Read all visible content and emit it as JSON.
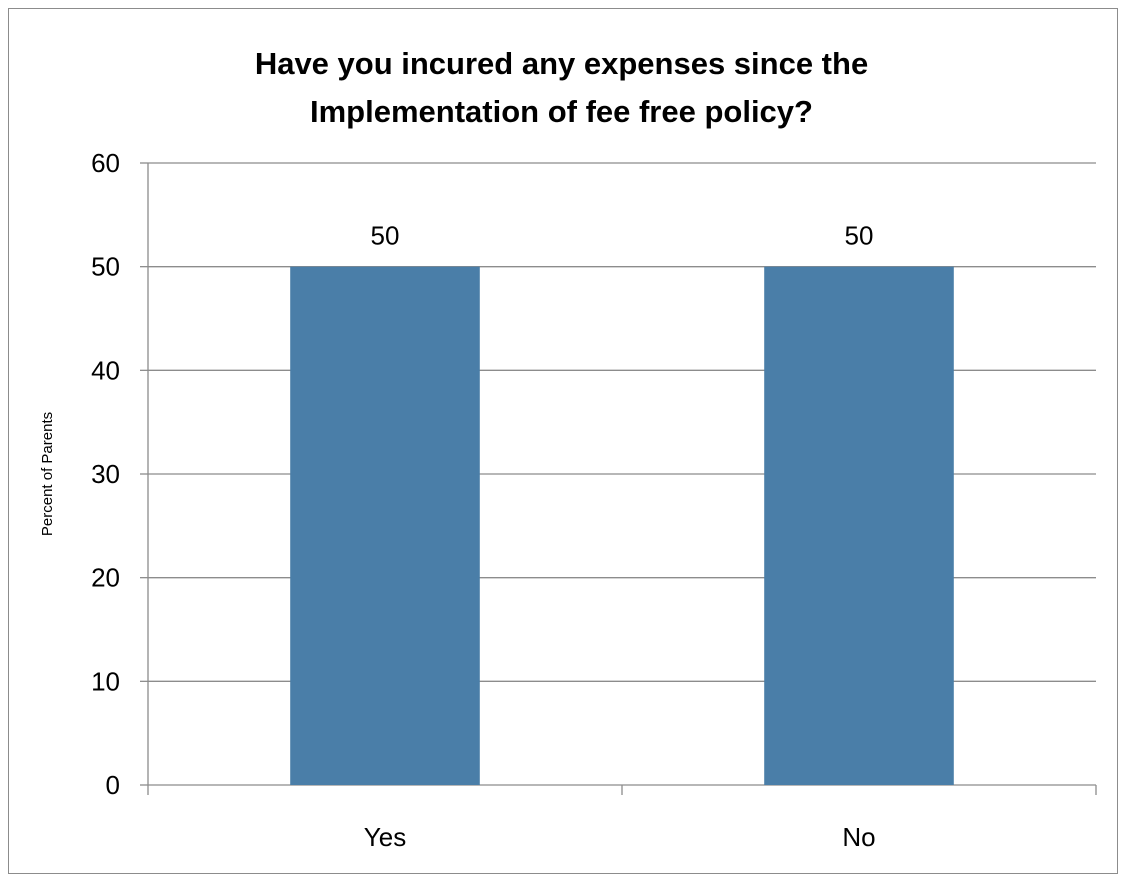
{
  "chart_data": {
    "type": "bar",
    "title": "Have you incured any expenses since the\nImplementation of fee free policy?",
    "xlabel": "",
    "ylabel": "Percent of Parents",
    "categories": [
      "Yes",
      "No"
    ],
    "values": [
      50,
      50
    ],
    "data_labels": [
      "50",
      "50"
    ],
    "ylim": [
      0,
      60
    ],
    "yticks": [
      0,
      10,
      20,
      30,
      40,
      50,
      60
    ],
    "ytick_labels": [
      "0",
      "10",
      "20",
      "30",
      "40",
      "50",
      "60"
    ],
    "grid": true,
    "legend": "none",
    "bar_color": "#4a7ea8",
    "grid_color": "#8c8c8c"
  }
}
